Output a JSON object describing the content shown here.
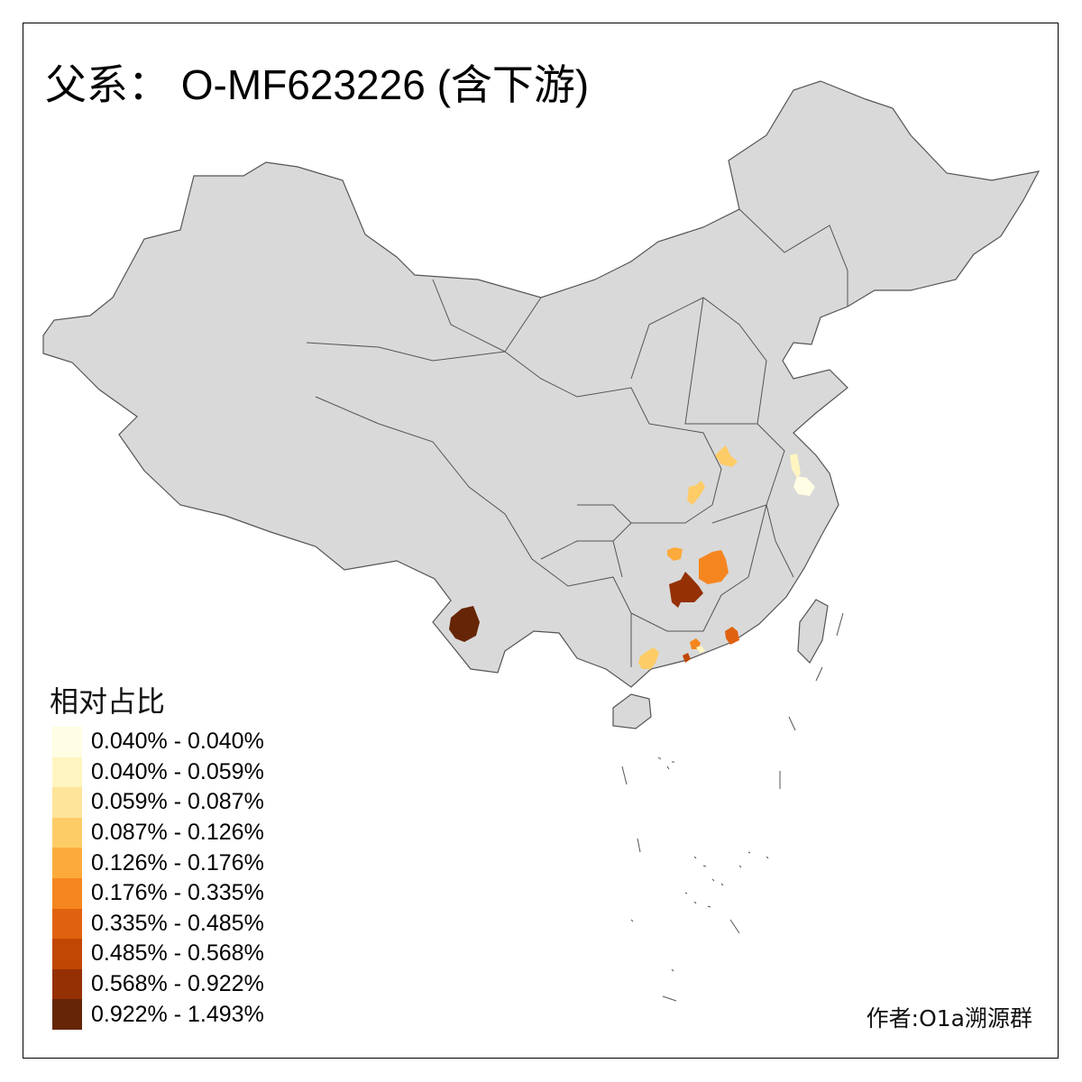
{
  "title": "父系： O-MF623226 (含下游)",
  "legend": {
    "title": "相对占比",
    "items": [
      {
        "label": "0.040% - 0.040%",
        "color": "#FFFDE3"
      },
      {
        "label": "0.040% - 0.059%",
        "color": "#FFF5C0"
      },
      {
        "label": "0.059% - 0.087%",
        "color": "#FEE49A"
      },
      {
        "label": "0.087% - 0.126%",
        "color": "#FECC66"
      },
      {
        "label": "0.126% - 0.176%",
        "color": "#FCAA3B"
      },
      {
        "label": "0.176% - 0.335%",
        "color": "#F5861F"
      },
      {
        "label": "0.335% - 0.485%",
        "color": "#E0620F"
      },
      {
        "label": "0.485% - 0.568%",
        "color": "#C04704"
      },
      {
        "label": "0.568% - 0.922%",
        "color": "#953005"
      },
      {
        "label": "0.922% - 1.493%",
        "color": "#662506"
      }
    ]
  },
  "credit": "作者:O1a溯源群",
  "map": {
    "base_fill": "#D9D9D9",
    "border_color": "#555555"
  }
}
